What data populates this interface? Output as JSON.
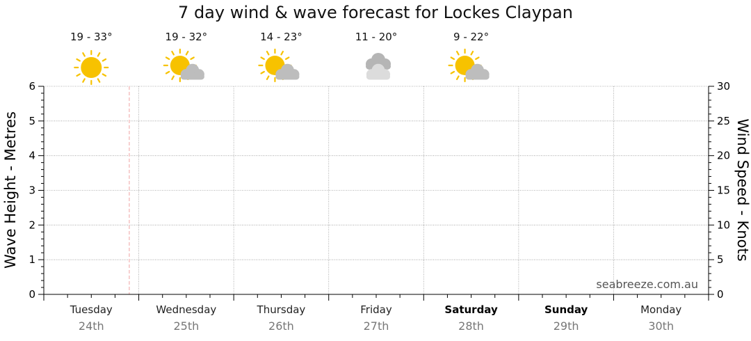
{
  "chart_data": {
    "type": "line",
    "title": "7 day wind & wave forecast for Lockes Claypan",
    "ylabel": "Wave Height - Metres",
    "ylabel_right": "Wind Speed - Knots",
    "ylim": [
      0,
      6
    ],
    "ylim_right": [
      0,
      30
    ],
    "yticks": [
      0,
      1,
      2,
      3,
      4,
      5,
      6
    ],
    "yticks_right": [
      0,
      5,
      10,
      15,
      20,
      25,
      30
    ],
    "grid": true,
    "current_time_marker_day_fraction": 0.9,
    "days": [
      {
        "name": "Tuesday",
        "date": "24th",
        "bold": false,
        "temp": "19 - 33°",
        "icon": "sun-icon"
      },
      {
        "name": "Wednesday",
        "date": "25th",
        "bold": false,
        "temp": "19 - 32°",
        "icon": "sun-cloud-icon"
      },
      {
        "name": "Thursday",
        "date": "26th",
        "bold": false,
        "temp": "14 - 23°",
        "icon": "sun-cloud-icon"
      },
      {
        "name": "Friday",
        "date": "27th",
        "bold": false,
        "temp": "11 - 20°",
        "icon": "cloud-icon"
      },
      {
        "name": "Saturday",
        "date": "28th",
        "bold": true,
        "temp": "9 - 22°",
        "icon": "sun-cloud-icon"
      },
      {
        "name": "Sunday",
        "date": "29th",
        "bold": true
      },
      {
        "name": "Monday",
        "date": "30th",
        "bold": false
      }
    ],
    "series": [],
    "watermark": "seabreeze.com.au"
  }
}
